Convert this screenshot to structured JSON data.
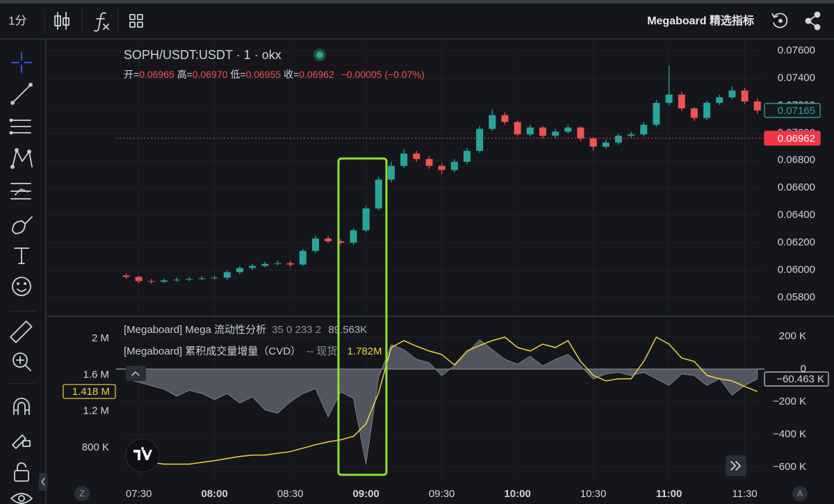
{
  "toolbar": {
    "interval": "1分",
    "indicator_button": "Megaboard 精选指标"
  },
  "axis_buttons": [
    "Z",
    "A"
  ],
  "chart_data": [
    {
      "type": "candlestick",
      "title": "SOPH/USDT:USDT · 1 · okx",
      "ohlc_legend": {
        "labels": [
          "开=",
          "高=",
          "低=",
          "收="
        ],
        "values": [
          0.06965,
          {
            "value": 0.0697,
            "label": "0.06970"
          },
          0.06955,
          0.06962
        ],
        "change": "−0.00005 (−0.07%)"
      },
      "x": [
        "07:25",
        "07:30",
        "07:35",
        "07:40",
        "07:45",
        "07:50",
        "07:55",
        "08:00",
        "08:05",
        "08:10",
        "08:15",
        "08:20",
        "08:25",
        "08:30",
        "08:35",
        "08:40",
        "08:45",
        "08:50",
        "08:55",
        "09:00",
        "09:05",
        "09:10",
        "09:15",
        "09:20",
        "09:25",
        "09:30",
        "09:35",
        "09:40",
        "09:45",
        "09:50",
        "09:55",
        "10:00",
        "10:05",
        "10:10",
        "10:15",
        "10:20",
        "10:25",
        "10:30",
        "10:35",
        "10:40",
        "10:45",
        "10:50",
        "10:55",
        "11:00",
        "11:05",
        "11:10",
        "11:15",
        "11:20",
        "11:25",
        "11:30",
        "11:35"
      ],
      "open": [
        0.0596,
        0.0595,
        0.0592,
        0.05915,
        0.05925,
        0.0593,
        0.05935,
        0.0594,
        0.05945,
        0.05985,
        0.06015,
        0.0603,
        0.06045,
        0.0605,
        0.0604,
        0.0614,
        0.0623,
        0.0621,
        0.062,
        0.0629,
        0.0645,
        0.0666,
        0.0676,
        0.0685,
        0.0681,
        0.0676,
        0.0673,
        0.0679,
        0.0687,
        0.0703,
        0.0713,
        0.0708,
        0.0699,
        0.0704,
        0.0698,
        0.0701,
        0.0704,
        0.0696,
        0.069,
        0.0693,
        0.0698,
        0.0699,
        0.0706,
        0.0722,
        0.0728,
        0.0718,
        0.0711,
        0.0722,
        0.0726,
        0.0731,
        0.0723
      ],
      "high": [
        0.05975,
        0.0596,
        0.05935,
        0.0594,
        0.05945,
        0.0595,
        0.05955,
        0.0596,
        0.06,
        0.0603,
        0.06045,
        0.0606,
        0.0607,
        0.06065,
        0.06155,
        0.0625,
        0.0625,
        0.06225,
        0.06305,
        0.0647,
        0.0668,
        0.0679,
        0.0688,
        0.0687,
        0.0683,
        0.0678,
        0.0681,
        0.0689,
        0.0705,
        0.0717,
        0.0715,
        0.0709,
        0.0706,
        0.0705,
        0.0703,
        0.0706,
        0.0705,
        0.0697,
        0.0695,
        0.06995,
        0.0701,
        0.0708,
        0.0724,
        0.0749,
        0.073,
        0.0719,
        0.07235,
        0.0728,
        0.0734,
        0.0733,
        0.0725
      ],
      "low": [
        0.05935,
        0.05905,
        0.059,
        0.05905,
        0.05915,
        0.0592,
        0.05925,
        0.0593,
        0.0593,
        0.0597,
        0.06,
        0.0602,
        0.06035,
        0.06025,
        0.0603,
        0.06125,
        0.06195,
        0.06185,
        0.06185,
        0.06275,
        0.06435,
        0.0664,
        0.06745,
        0.0679,
        0.0674,
        0.067,
        0.06715,
        0.06775,
        0.06855,
        0.07015,
        0.0706,
        0.06975,
        0.06975,
        0.0696,
        0.06965,
        0.06995,
        0.0694,
        0.0687,
        0.06885,
        0.06915,
        0.06965,
        0.06975,
        0.07045,
        0.072,
        0.0716,
        0.0709,
        0.07095,
        0.07205,
        0.07245,
        0.0721,
        0.0714
      ],
      "close": [
        0.0595,
        0.0592,
        0.05915,
        0.05925,
        0.0593,
        0.05935,
        0.0594,
        0.05945,
        0.05985,
        0.06015,
        0.0603,
        0.06045,
        0.0605,
        0.0604,
        0.0614,
        0.0623,
        0.0621,
        0.062,
        0.0629,
        0.0645,
        0.0666,
        0.0676,
        0.0685,
        0.0681,
        0.0676,
        0.0673,
        0.0679,
        0.0687,
        0.0703,
        0.0713,
        0.0708,
        0.0699,
        0.0704,
        0.0698,
        0.0701,
        0.0704,
        0.0696,
        0.069,
        0.0693,
        0.0698,
        0.0699,
        0.0706,
        0.0722,
        0.0728,
        0.0718,
        0.0711,
        0.0722,
        0.0726,
        0.0731,
        0.0723,
        0.07165
      ],
      "up_color": "#26a69a",
      "down_color": "#ef5350",
      "xlim": [
        "07:21",
        "11:37"
      ],
      "ylim": [
        0.05678,
        0.07666
      ],
      "yticks": [
        {
          "value": 0.058,
          "label": "0.05800"
        },
        {
          "value": 0.06,
          "label": "0.06000"
        },
        {
          "value": 0.062,
          "label": "0.06200"
        },
        {
          "value": 0.064,
          "label": "0.06400"
        },
        {
          "value": 0.066,
          "label": "0.06600"
        },
        {
          "value": 0.068,
          "label": "0.06800"
        },
        {
          "value": 0.07,
          "label": "0.07000"
        },
        {
          "value": 0.072,
          "label": "0.07200"
        },
        {
          "value": 0.074,
          "label": "0.07400"
        },
        {
          "value": 0.076,
          "label": "0.07600"
        }
      ],
      "grid": true,
      "price_tags": [
        {
          "value": 0.07165,
          "color": "#26a69a",
          "style": "outline"
        },
        {
          "value": 0.06962,
          "color": "#f23645",
          "style": "filled",
          "price_line": true
        }
      ]
    },
    {
      "type": "line",
      "x": [
        "07:25",
        "07:30",
        "07:35",
        "07:40",
        "07:45",
        "07:50",
        "07:55",
        "08:00",
        "08:05",
        "08:10",
        "08:15",
        "08:20",
        "08:25",
        "08:30",
        "08:35",
        "08:40",
        "08:45",
        "08:50",
        "08:55",
        "09:00",
        "09:05",
        "09:10",
        "09:15",
        "09:20",
        "09:25",
        "09:30",
        "09:35",
        "09:40",
        "09:45",
        "09:50",
        "09:55",
        "10:00",
        "10:05",
        "10:10",
        "10:15",
        "10:20",
        "10:25",
        "10:30",
        "10:35",
        "10:40",
        "10:45",
        "10:50",
        "10:55",
        "11:00",
        "11:05",
        "11:10",
        "11:15",
        "11:20",
        "11:25",
        "11:30",
        "11:35"
      ],
      "series": [
        {
          "name": "[Megaboard] Mega 流动性分析",
          "params": "35 0 233 2",
          "legend_value": "89.563K",
          "type": "area",
          "axis": "y2",
          "color": "#5d606b",
          "last_label": "−60.463 K",
          "values": [
            -60000,
            -81000,
            -102000,
            -123000,
            -166000,
            -130000,
            -150000,
            -187000,
            -150000,
            -208000,
            -170000,
            -251000,
            -270000,
            -200000,
            -150000,
            -120000,
            -294000,
            -140000,
            -180000,
            -583000,
            -50000,
            150000,
            120000,
            60000,
            40000,
            -40000,
            20000,
            100000,
            180000,
            120000,
            60000,
            30000,
            80000,
            20000,
            60000,
            90000,
            20000,
            -60000,
            -30000,
            -20000,
            -40000,
            -20000,
            -60000,
            -100000,
            -30000,
            -40000,
            -100000,
            -60000,
            -160000,
            -100000,
            -60463
          ]
        },
        {
          "name": "[Megaboard] 累积成交量增量（CVD）",
          "params": "-- 现货",
          "legend_value": "1.782M",
          "type": "line",
          "axis": "y",
          "color": "#f0d43a",
          "last_label": "1.418 M",
          "values": [
            758000,
            682000,
            640000,
            621000,
            621000,
            621000,
            640000,
            659000,
            682000,
            705000,
            720000,
            720000,
            740000,
            758000,
            796000,
            834000,
            865000,
            888000,
            926000,
            1063000,
            1406000,
            1901000,
            1977000,
            1916000,
            1863000,
            1825000,
            1710000,
            1863000,
            1924000,
            1977000,
            2015000,
            1901000,
            1863000,
            1939000,
            1901000,
            1977000,
            1749000,
            1596000,
            1535000,
            1558000,
            1558000,
            1749000,
            2015000,
            1939000,
            1786000,
            1749000,
            1596000,
            1558000,
            1535000,
            1474000,
            1418000
          ]
        }
      ],
      "xlim": [
        "07:21",
        "11:37"
      ],
      "xticks": [
        "07:30",
        "08:00",
        "08:30",
        "09:00",
        "09:30",
        "10:00",
        "10:30",
        "11:00",
        "11:30"
      ],
      "ylim": [
        450000,
        2206000
      ],
      "yticks": [
        {
          "value": 2000000,
          "label": "2 M"
        },
        {
          "value": 1600000,
          "label": "1.6 M"
        },
        {
          "value": 1200000,
          "label": "1.2 M"
        },
        {
          "value": 800000,
          "label": "800 K"
        }
      ],
      "y2lim": [
        -677000,
        302000
      ],
      "y2ticks": [
        {
          "value": 200000,
          "label": "200 K"
        },
        0,
        {
          "value": -200000,
          "label": "−200 K"
        },
        {
          "value": -400000,
          "label": "−400 K"
        },
        {
          "value": -600000,
          "label": "−600 K"
        }
      ],
      "grid": true
    }
  ]
}
